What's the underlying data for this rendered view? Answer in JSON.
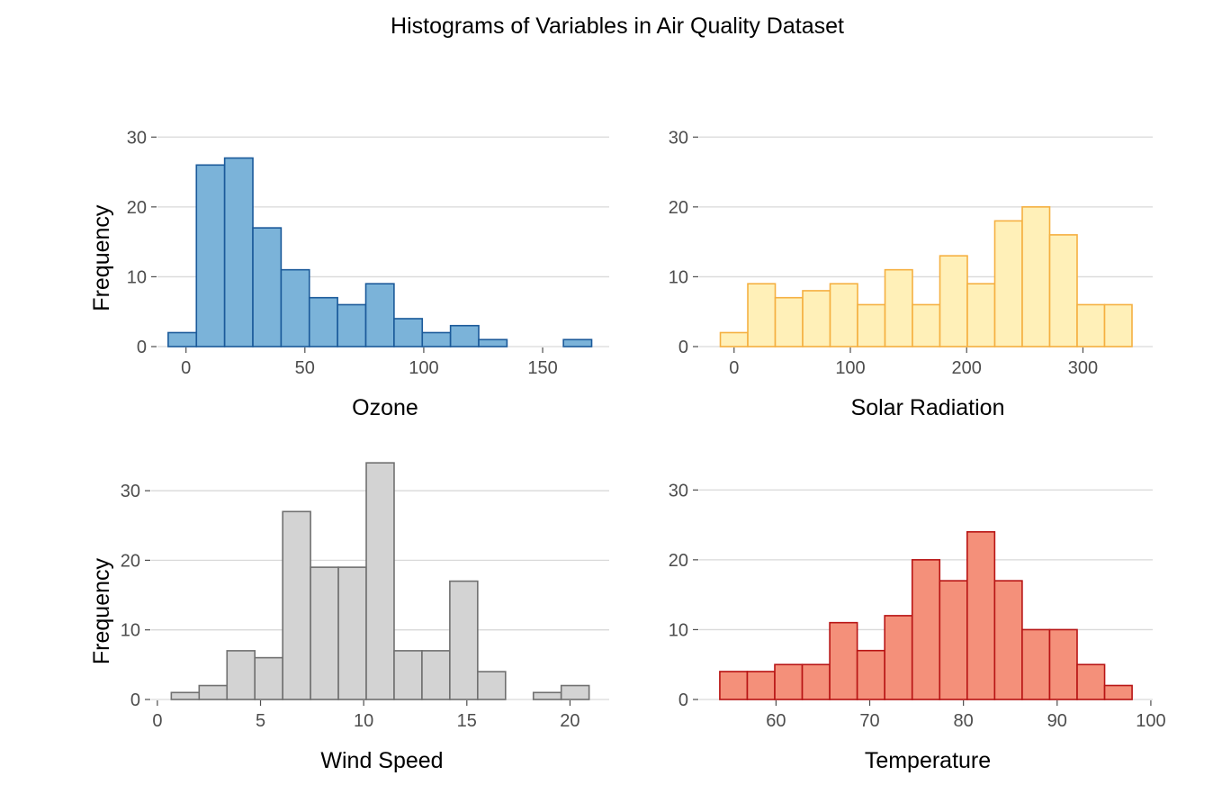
{
  "figure": {
    "title": "Histograms of Variables in Air Quality Dataset"
  },
  "chart_data": [
    {
      "type": "bar",
      "subtype": "histogram",
      "xlabel": "Ozone",
      "ylabel": "Frequency",
      "bin_width": 11.875,
      "bin_edges": [
        -7.5,
        4.375,
        16.25,
        28.125,
        40,
        51.875,
        63.75,
        75.625,
        87.5,
        99.375,
        111.25,
        123.125,
        135,
        146.875,
        158.75,
        170.625
      ],
      "values": [
        2,
        26,
        27,
        17,
        11,
        7,
        6,
        9,
        4,
        2,
        3,
        1,
        0,
        0,
        1
      ],
      "xlim": [
        -12,
        178
      ],
      "ylim": [
        0,
        33
      ],
      "x_ticks": [
        "0",
        "50",
        "100",
        "150"
      ],
      "x_tick_values": [
        0,
        50,
        100,
        150
      ],
      "y_ticks": [
        "0",
        "10",
        "20",
        "30"
      ],
      "y_tick_values": [
        0,
        10,
        20,
        30
      ],
      "grid": "horizontal",
      "fill_color": "#7bb3d9",
      "edge_color": "#1b5a9a"
    },
    {
      "type": "bar",
      "subtype": "histogram",
      "xlabel": "Solar Radiation",
      "ylabel": "",
      "bin_width": 23.6,
      "bin_edges": [
        -11.8,
        11.8,
        35.4,
        59,
        82.6,
        106.2,
        129.8,
        153.4,
        177,
        200.6,
        224.2,
        247.8,
        271.4,
        295,
        318.6,
        342.2
      ],
      "values": [
        2,
        9,
        7,
        8,
        9,
        6,
        11,
        6,
        13,
        9,
        18,
        20,
        16,
        6,
        6
      ],
      "xlim": [
        -30,
        360
      ],
      "ylim": [
        0,
        33
      ],
      "x_ticks": [
        "0",
        "100",
        "200",
        "300"
      ],
      "x_tick_values": [
        0,
        100,
        200,
        300
      ],
      "y_ticks": [
        "0",
        "10",
        "20",
        "30"
      ],
      "y_tick_values": [
        0,
        10,
        20,
        30
      ],
      "grid": "horizontal",
      "fill_color": "#fff0b8",
      "edge_color": "#f5b041"
    },
    {
      "type": "bar",
      "subtype": "histogram",
      "xlabel": "Wind Speed",
      "ylabel": "Frequency",
      "bin_width": 1.35,
      "bin_edges": [
        0.675,
        2.025,
        3.375,
        4.725,
        6.075,
        7.425,
        8.775,
        10.125,
        11.475,
        12.825,
        14.175,
        15.525,
        16.875,
        18.225,
        19.575,
        20.925
      ],
      "values": [
        1,
        2,
        7,
        6,
        27,
        19,
        19,
        34,
        7,
        7,
        17,
        4,
        0,
        1,
        2
      ],
      "xlim": [
        -0.3,
        21.9
      ],
      "ylim": [
        0,
        35.7
      ],
      "x_ticks": [
        "0",
        "5",
        "10",
        "15",
        "20"
      ],
      "x_tick_values": [
        0,
        5,
        10,
        15,
        20
      ],
      "y_ticks": [
        "0",
        "10",
        "20",
        "30"
      ],
      "y_tick_values": [
        0,
        10,
        20,
        30
      ],
      "grid": "horizontal",
      "fill_color": "#d3d3d3",
      "edge_color": "#707070"
    },
    {
      "type": "bar",
      "subtype": "histogram",
      "xlabel": "Temperature",
      "ylabel": "",
      "bin_width": 2.9333,
      "bin_edges": [
        54,
        56.9333,
        59.8667,
        62.8,
        65.7333,
        68.6667,
        71.6,
        74.5333,
        77.4667,
        80.4,
        83.3333,
        86.2667,
        89.2,
        92.1333,
        95.0667,
        98
      ],
      "values": [
        4,
        4,
        5,
        5,
        11,
        7,
        12,
        20,
        17,
        24,
        17,
        10,
        10,
        5,
        2
      ],
      "xlim": [
        51.8,
        100.2
      ],
      "ylim": [
        0,
        33
      ],
      "x_ticks": [
        "60",
        "70",
        "80",
        "90",
        "100"
      ],
      "x_tick_values": [
        60,
        70,
        80,
        90,
        100
      ],
      "y_ticks": [
        "0",
        "10",
        "20",
        "30"
      ],
      "y_tick_values": [
        0,
        10,
        20,
        30
      ],
      "grid": "horizontal",
      "fill_color": "#f4907a",
      "edge_color": "#b81414"
    }
  ]
}
